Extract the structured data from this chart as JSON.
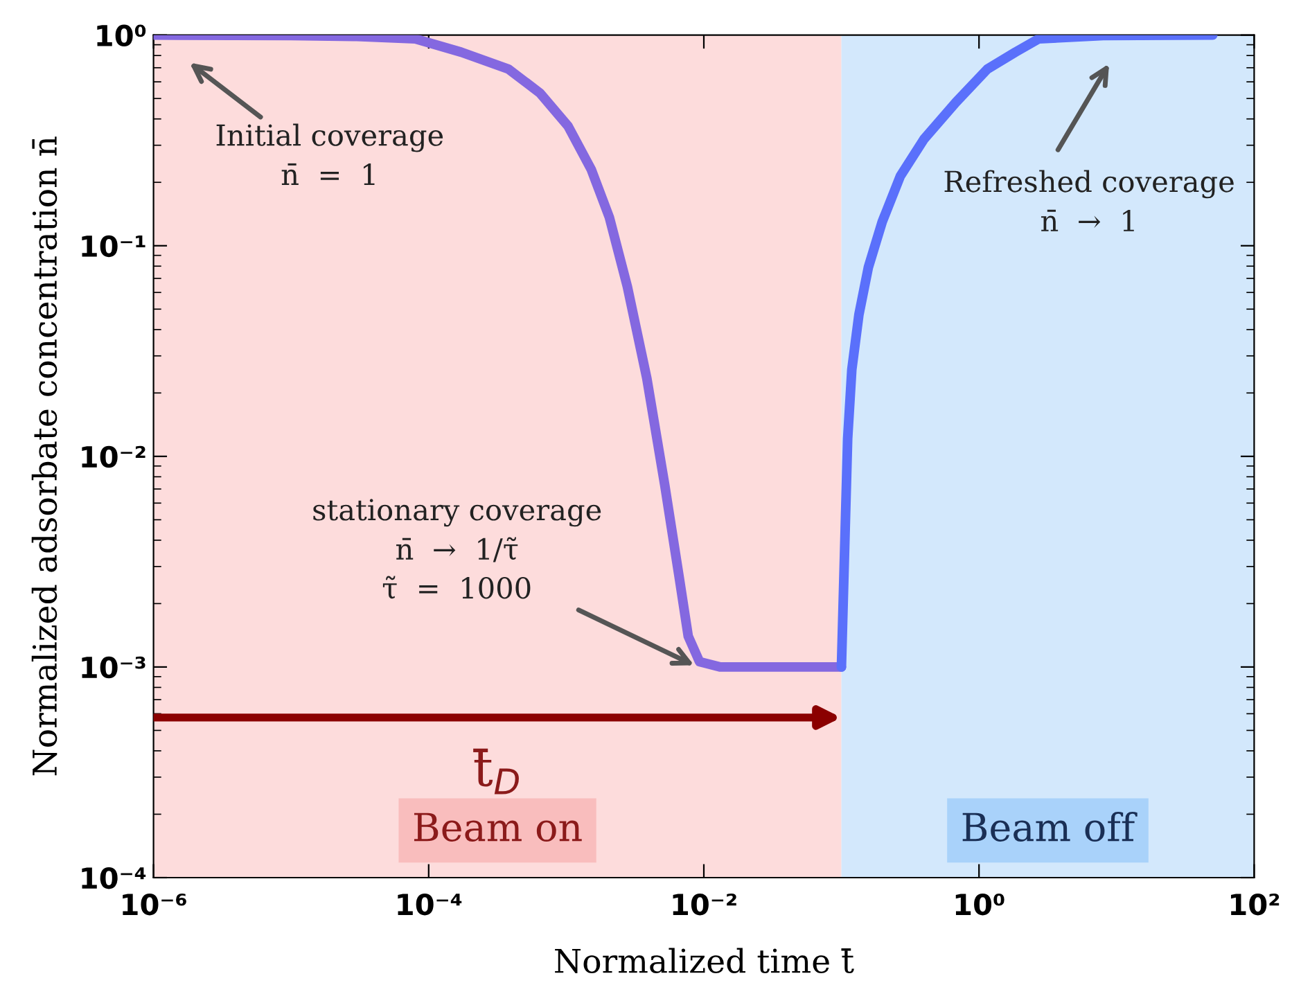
{
  "chart_data": {
    "type": "line",
    "xlabel": "Normalized time t̄",
    "ylabel": "Normalized adsorbate concentration n̄",
    "log": "xy",
    "xlim": [
      1e-06,
      100
    ],
    "ylim": [
      0.0001,
      1
    ],
    "xticks": [
      {
        "value": 1e-06,
        "label": "10⁻⁶"
      },
      {
        "value": 0.0001,
        "label": "10⁻⁴"
      },
      {
        "value": 0.01,
        "label": "10⁻²"
      },
      {
        "value": 1,
        "label": "10⁰"
      },
      {
        "value": 100,
        "label": "10²"
      }
    ],
    "yticks": [
      {
        "value": 0.0001,
        "label": "10⁻⁴"
      },
      {
        "value": 0.001,
        "label": "10⁻³"
      },
      {
        "value": 0.01,
        "label": "10⁻²"
      },
      {
        "value": 0.1,
        "label": "10⁻¹"
      },
      {
        "value": 1,
        "label": "10⁰"
      }
    ],
    "series": [
      {
        "color": "#8468e0",
        "x": [
          1e-06,
          1e-05,
          3e-05,
          8e-05,
          0.000172,
          0.00038,
          0.000645,
          0.00103,
          0.00152,
          0.00206,
          0.00278,
          0.00385,
          0.0052,
          0.0066,
          0.0077,
          0.0093,
          0.0132,
          0.1
        ],
        "values": [
          1,
          0.995,
          0.985,
          0.96,
          0.83,
          0.69,
          0.53,
          0.37,
          0.23,
          0.136,
          0.064,
          0.0235,
          0.0073,
          0.0027,
          0.0014,
          0.00106,
          0.001,
          0.001
        ]
      },
      {
        "color": "#5a70fb",
        "x": [
          0.1,
          0.111,
          0.119,
          0.134,
          0.157,
          0.198,
          0.268,
          0.397,
          0.68,
          1.15,
          1.84,
          2.72,
          8,
          50
        ],
        "values": [
          0.001,
          0.0121,
          0.0258,
          0.047,
          0.079,
          0.13,
          0.214,
          0.32,
          0.48,
          0.69,
          0.83,
          0.96,
          0.995,
          1
        ]
      }
    ],
    "bands": [
      {
        "axis": "x",
        "from": 1e-06,
        "to": 0.1,
        "label": "Beam on",
        "color": "#fddcdc"
      },
      {
        "axis": "x",
        "from": 0.1,
        "to": 100,
        "label": "Beam off",
        "color": "#d3e8fc"
      }
    ],
    "annotations": [
      "Initial coverage\nn̄  =  1",
      "Refreshed coverage\nn̄  →  1",
      {
        "text": "stationary coverage\nn̄  →  1/τ̃\nτ̃  =  1000",
        "x": 0.009,
        "y": 0.001
      },
      "t̄$_{D}$"
    ],
    "grid": false
  }
}
